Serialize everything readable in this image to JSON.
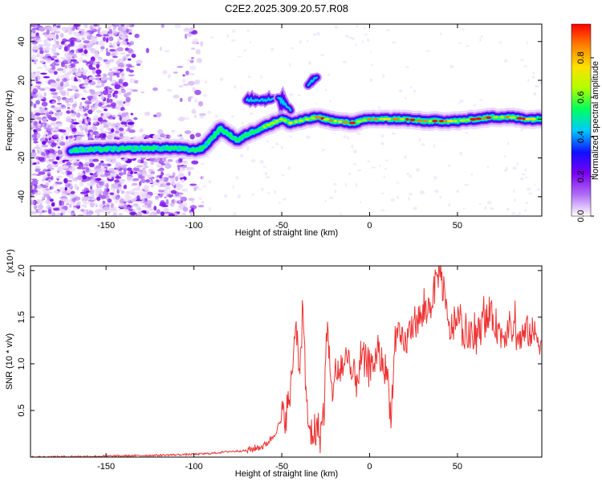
{
  "title": "C2E2.2025.309.20.57.R08",
  "chart_data": [
    {
      "type": "heatmap",
      "xlabel": "Height of straight line (km)",
      "ylabel": "Frequency (Hz)",
      "xlim": [
        -193,
        98
      ],
      "ylim": [
        -50,
        49
      ],
      "xticks": [
        -150,
        -100,
        -50,
        0,
        50
      ],
      "yticks": [
        -40,
        -20,
        0,
        20,
        40
      ],
      "colorbar_label": "Normalized spectral amplitude",
      "colorbar_range": [
        0.0,
        0.97
      ],
      "colorbar_ticks": [
        0.0,
        0.2,
        0.4,
        0.6,
        0.8
      ],
      "colormap": [
        "#ffffff",
        "#b06ef5",
        "#7a00f0",
        "#1010ff",
        "#00c8ff",
        "#00ff60",
        "#b0ff00",
        "#ffe000",
        "#ff8000",
        "#ff0000"
      ],
      "ridge": {
        "x": [
          -170,
          -130,
          -110,
          -100,
          -95,
          -90,
          -85,
          -80,
          -75,
          -70,
          -65,
          -60,
          -55,
          -50,
          -45,
          -40,
          -35,
          -30,
          -20,
          -10,
          0,
          10,
          20,
          30,
          40,
          50,
          60,
          70,
          80,
          90,
          98
        ],
        "y": [
          -16,
          -15,
          -15,
          -16,
          -15,
          -10,
          -5,
          -8,
          -11,
          -8,
          -6,
          -4,
          -2,
          0,
          -2,
          -1,
          0,
          1,
          -1,
          -2,
          0,
          0,
          0,
          -1,
          -1,
          -1,
          0,
          1,
          1,
          0,
          0
        ]
      },
      "secondary_features": [
        {
          "x": [
            -70,
            -55
          ],
          "y": [
            10,
            10
          ]
        },
        {
          "x": [
            -52,
            -45
          ],
          "y": [
            11,
            5
          ]
        },
        {
          "x": [
            -35,
            -30
          ],
          "y": [
            18,
            22
          ]
        }
      ]
    },
    {
      "type": "line",
      "xlabel": "Height of straight line (km)",
      "ylabel": "SNR (10 * v/v)",
      "scale_label": "(x10⁴)",
      "xlim": [
        -193,
        98
      ],
      "ylim": [
        0,
        2.05
      ],
      "xticks": [
        -150,
        -100,
        -50,
        0,
        50
      ],
      "yticks": [
        0.5,
        1.0,
        1.5,
        2.0
      ],
      "ytick_labels": [
        "0.5",
        "1.0",
        "1.5",
        "2.0"
      ],
      "color": "#ee3333",
      "series": [
        {
          "name": "SNR",
          "x": [
            -193,
            -150,
            -120,
            -100,
            -90,
            -80,
            -70,
            -60,
            -55,
            -50,
            -46,
            -44,
            -42,
            -40,
            -38,
            -36,
            -34,
            -30,
            -28,
            -26,
            -24,
            -22,
            -20,
            -18,
            -16,
            -12,
            -8,
            -5,
            0,
            5,
            10,
            12,
            15,
            20,
            25,
            30,
            35,
            40,
            45,
            50,
            55,
            60,
            65,
            70,
            75,
            80,
            85,
            90,
            95,
            98
          ],
          "y": [
            0.0,
            0.01,
            0.02,
            0.03,
            0.04,
            0.06,
            0.07,
            0.12,
            0.22,
            0.4,
            0.55,
            0.9,
            1.65,
            0.7,
            1.72,
            0.5,
            0.25,
            0.3,
            0.25,
            0.5,
            1.4,
            0.65,
            0.9,
            0.85,
            1.0,
            0.95,
            0.8,
            1.05,
            0.95,
            1.1,
            0.9,
            0.45,
            1.3,
            1.2,
            1.45,
            1.5,
            1.65,
            2.05,
            1.35,
            1.45,
            1.3,
            1.25,
            1.45,
            1.5,
            1.3,
            1.4,
            1.25,
            1.35,
            1.3,
            1.25
          ]
        }
      ]
    }
  ]
}
